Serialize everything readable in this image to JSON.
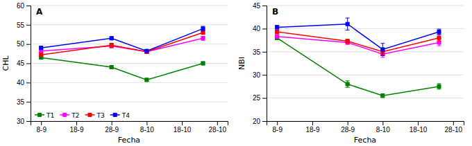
{
  "chart_data": [
    {
      "type": "line",
      "title": "A",
      "xlabel": "Fecha",
      "ylabel": "CHL",
      "x": [
        0,
        20,
        30,
        46
      ],
      "xlim": [
        -3,
        53
      ],
      "xticks": [
        {
          "value": 0,
          "label": "8-9"
        },
        {
          "value": 10,
          "label": "18-9"
        },
        {
          "value": 20,
          "label": "28-9"
        },
        {
          "value": 30,
          "label": "8-10"
        },
        {
          "value": 40,
          "label": "18-10"
        },
        {
          "value": 50,
          "label": "28-10"
        }
      ],
      "ylim": [
        30,
        60
      ],
      "yticks": [
        30,
        35,
        40,
        45,
        50,
        55,
        60
      ],
      "grid": "y",
      "marker": "square",
      "legend": "lower left",
      "series": [
        {
          "name": "T1",
          "color": "#008000",
          "values": [
            46.5,
            44.0,
            40.7,
            45.0
          ],
          "errors": [
            0.4,
            0.4,
            0.4,
            0.4
          ]
        },
        {
          "name": "T2",
          "color": "#ff00ff",
          "values": [
            48.2,
            49.5,
            48.0,
            51.5
          ],
          "errors": [
            0.4,
            0.5,
            0.4,
            0.5
          ]
        },
        {
          "name": "T3",
          "color": "#ff0000",
          "values": [
            47.2,
            49.7,
            48.0,
            53.0
          ],
          "errors": [
            0.4,
            0.5,
            0.4,
            0.5
          ]
        },
        {
          "name": "T4",
          "color": "#0000ff",
          "values": [
            49.0,
            51.5,
            48.2,
            54.0
          ],
          "errors": [
            0.4,
            0.4,
            0.4,
            0.6
          ]
        }
      ]
    },
    {
      "type": "line",
      "title": "B",
      "xlabel": "Fecha",
      "ylabel": "NBI",
      "x": [
        0,
        20,
        30,
        46
      ],
      "xlim": [
        -3,
        53
      ],
      "xticks": [
        {
          "value": 0,
          "label": "8-9"
        },
        {
          "value": 10,
          "label": "18-9"
        },
        {
          "value": 20,
          "label": "28-9"
        },
        {
          "value": 30,
          "label": "8-10"
        },
        {
          "value": 40,
          "label": "18-10"
        },
        {
          "value": 50,
          "label": "28-10"
        }
      ],
      "ylim": [
        20,
        45
      ],
      "yticks": [
        20,
        25,
        30,
        35,
        40,
        45
      ],
      "grid": "y",
      "marker": "square",
      "series": [
        {
          "name": "T1",
          "color": "#008000",
          "values": [
            38.0,
            28.0,
            25.5,
            27.5
          ],
          "errors": [
            0.4,
            0.7,
            0.4,
            0.6
          ]
        },
        {
          "name": "T2",
          "color": "#ff00ff",
          "values": [
            38.3,
            37.0,
            34.5,
            37.0
          ],
          "errors": [
            0.4,
            0.4,
            0.7,
            0.7
          ]
        },
        {
          "name": "T3",
          "color": "#ff0000",
          "values": [
            39.3,
            37.3,
            35.0,
            38.0
          ],
          "errors": [
            0.4,
            0.4,
            0.7,
            0.7
          ]
        },
        {
          "name": "T4",
          "color": "#0000ff",
          "values": [
            40.3,
            41.0,
            35.5,
            39.3
          ],
          "errors": [
            0.4,
            1.3,
            1.3,
            0.6
          ]
        }
      ]
    }
  ]
}
